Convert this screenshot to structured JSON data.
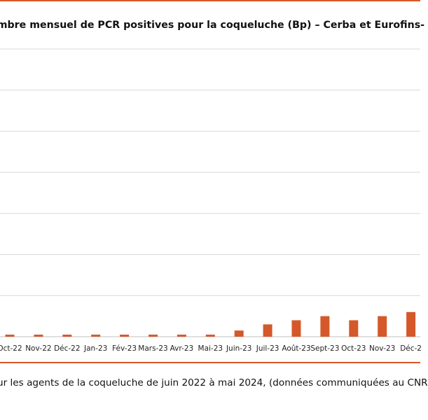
{
  "title": "ombre mensuel de PCR positives pour la coqueluche (Bp) – Cerba et Eurofins-",
  "caption": "ur les agents de la coqueluche de juin 2022 à mai 2024, (données communiquées au CNR",
  "colors": {
    "accent": "#d4582a",
    "bar": "#d4582a",
    "grid": "#d9d9d9"
  },
  "chart_data": {
    "type": "bar",
    "title": "ombre mensuel de PCR positives pour la coqueluche (Bp) – Cerba et Eurofins-",
    "xlabel": "",
    "ylabel": "",
    "grid": true,
    "categories": [
      "Oct-22",
      "Nov-22",
      "Déc-22",
      "Jan-23",
      "Fév-23",
      "Mars-23",
      "Avr-23",
      "Mai-23",
      "Juin-23",
      "Juil-23",
      "Août-23",
      "Sept-23",
      "Oct-23",
      "Nov-23",
      "Déc-2"
    ],
    "series": [
      {
        "values": [
          1,
          1,
          1,
          1,
          1,
          1,
          1,
          1,
          3,
          6,
          8,
          10,
          8,
          10,
          12
        ]
      }
    ],
    "ylim": [
      0,
      140
    ]
  }
}
